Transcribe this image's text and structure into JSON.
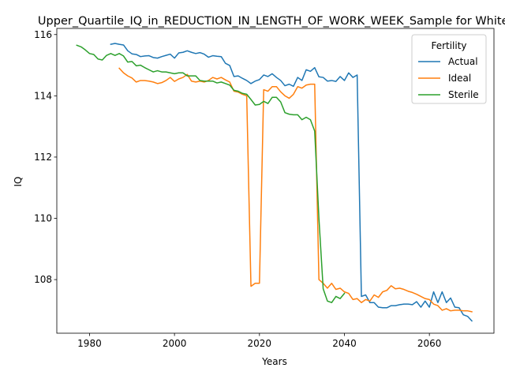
{
  "chart_data": {
    "type": "line",
    "title": "Upper_Quartile_IQ_in_REDUCTION_IN_LENGTH_OF_WORK_WEEK_Sample for Whites",
    "xlabel": "Years",
    "ylabel": "IQ",
    "xlim": [
      1972.3,
      2075.2
    ],
    "ylim": [
      106.25,
      116.2
    ],
    "xticks": [
      1980,
      2000,
      2020,
      2040,
      2060
    ],
    "yticks": [
      108,
      110,
      112,
      114,
      116
    ],
    "grid": false,
    "legend": {
      "title": "Fertility",
      "placement": "top-right"
    },
    "series": [
      {
        "name": "Actual",
        "color": "#1f77b4",
        "x": [
          1985,
          1986,
          1987,
          1988,
          1989,
          1990,
          1991,
          1992,
          1993,
          1994,
          1995,
          1996,
          1997,
          1998,
          1999,
          2000,
          2001,
          2002,
          2003,
          2004,
          2005,
          2006,
          2007,
          2008,
          2009,
          2010,
          2011,
          2012,
          2013,
          2014,
          2015,
          2016,
          2017,
          2018,
          2019,
          2020,
          2021,
          2022,
          2023,
          2024,
          2025,
          2026,
          2027,
          2028,
          2029,
          2030,
          2031,
          2032,
          2033,
          2034,
          2035,
          2036,
          2037,
          2038,
          2039,
          2040,
          2041,
          2042,
          2043,
          2044,
          2045,
          2046,
          2047,
          2048,
          2049,
          2050,
          2051,
          2052,
          2053,
          2054,
          2055,
          2056,
          2057,
          2058,
          2059,
          2060,
          2061,
          2062,
          2063,
          2064,
          2065,
          2066,
          2067,
          2068,
          2069,
          2070
        ],
        "values": [
          115.68,
          115.71,
          115.68,
          115.66,
          115.47,
          115.37,
          115.35,
          115.28,
          115.3,
          115.31,
          115.25,
          115.23,
          115.28,
          115.32,
          115.36,
          115.23,
          115.4,
          115.42,
          115.47,
          115.42,
          115.38,
          115.41,
          115.36,
          115.26,
          115.31,
          115.29,
          115.28,
          115.06,
          114.99,
          114.63,
          114.65,
          114.57,
          114.5,
          114.4,
          114.48,
          114.53,
          114.68,
          114.63,
          114.72,
          114.6,
          114.5,
          114.33,
          114.38,
          114.31,
          114.6,
          114.5,
          114.85,
          114.8,
          114.92,
          114.62,
          114.6,
          114.48,
          114.5,
          114.47,
          114.63,
          114.5,
          114.75,
          114.6,
          114.68,
          107.45,
          107.5,
          107.25,
          107.25,
          107.1,
          107.08,
          107.08,
          107.15,
          107.15,
          107.18,
          107.2,
          107.2,
          107.18,
          107.28,
          107.1,
          107.3,
          107.1,
          107.6,
          107.25,
          107.6,
          107.25,
          107.4,
          107.1,
          107.08,
          106.85,
          106.8,
          106.65
        ]
      },
      {
        "name": "Ideal",
        "color": "#ff7f0e",
        "x": [
          1987,
          1988,
          1989,
          1990,
          1991,
          1992,
          1993,
          1994,
          1995,
          1996,
          1997,
          1998,
          1999,
          2000,
          2001,
          2002,
          2003,
          2004,
          2005,
          2006,
          2007,
          2008,
          2009,
          2010,
          2011,
          2012,
          2013,
          2014,
          2015,
          2016,
          2017,
          2018,
          2019,
          2020,
          2021,
          2022,
          2023,
          2024,
          2025,
          2026,
          2027,
          2028,
          2029,
          2030,
          2031,
          2032,
          2033,
          2034,
          2035,
          2036,
          2037,
          2038,
          2039,
          2040,
          2041,
          2042,
          2043,
          2044,
          2045,
          2046,
          2047,
          2048,
          2049,
          2050,
          2051,
          2052,
          2053,
          2054,
          2055,
          2056,
          2057,
          2058,
          2059,
          2060,
          2061,
          2062,
          2063,
          2064,
          2065,
          2066,
          2067,
          2068,
          2069,
          2070
        ],
        "values": [
          114.9,
          114.75,
          114.65,
          114.58,
          114.45,
          114.5,
          114.5,
          114.48,
          114.45,
          114.4,
          114.43,
          114.5,
          114.6,
          114.47,
          114.55,
          114.6,
          114.7,
          114.48,
          114.45,
          114.48,
          114.45,
          114.5,
          114.6,
          114.55,
          114.6,
          114.52,
          114.45,
          114.15,
          114.12,
          114.05,
          114.0,
          107.78,
          107.88,
          107.88,
          114.2,
          114.15,
          114.3,
          114.3,
          114.13,
          114.0,
          113.92,
          114.05,
          114.3,
          114.25,
          114.35,
          114.38,
          114.38,
          108.0,
          107.88,
          107.72,
          107.88,
          107.68,
          107.72,
          107.6,
          107.55,
          107.35,
          107.38,
          107.25,
          107.35,
          107.3,
          107.5,
          107.42,
          107.6,
          107.65,
          107.8,
          107.7,
          107.72,
          107.68,
          107.62,
          107.58,
          107.52,
          107.45,
          107.38,
          107.35,
          107.2,
          107.15,
          107.0,
          107.05,
          106.98,
          107.0,
          107.0,
          106.98,
          106.98,
          106.95
        ]
      },
      {
        "name": "Sterile",
        "color": "#2ca02c",
        "x": [
          1977,
          1978,
          1979,
          1980,
          1981,
          1982,
          1983,
          1984,
          1985,
          1986,
          1987,
          1988,
          1989,
          1990,
          1991,
          1992,
          1993,
          1994,
          1995,
          1996,
          1997,
          1998,
          1999,
          2000,
          2001,
          2002,
          2003,
          2004,
          2005,
          2006,
          2007,
          2008,
          2009,
          2010,
          2011,
          2012,
          2013,
          2014,
          2015,
          2016,
          2017,
          2018,
          2019,
          2020,
          2021,
          2022,
          2023,
          2024,
          2025,
          2026,
          2027,
          2028,
          2029,
          2030,
          2031,
          2032,
          2033,
          2034,
          2035,
          2036,
          2037,
          2038,
          2039,
          2040
        ],
        "values": [
          115.65,
          115.6,
          115.5,
          115.38,
          115.35,
          115.2,
          115.17,
          115.32,
          115.38,
          115.32,
          115.38,
          115.3,
          115.1,
          115.12,
          114.98,
          115.0,
          114.92,
          114.85,
          114.78,
          114.82,
          114.78,
          114.78,
          114.75,
          114.72,
          114.75,
          114.75,
          114.65,
          114.65,
          114.65,
          114.5,
          114.48,
          114.48,
          114.48,
          114.42,
          114.45,
          114.4,
          114.35,
          114.18,
          114.15,
          114.08,
          114.05,
          113.88,
          113.7,
          113.72,
          113.82,
          113.75,
          113.95,
          113.95,
          113.8,
          113.45,
          113.4,
          113.38,
          113.38,
          113.22,
          113.3,
          113.22,
          112.85,
          110.0,
          107.7,
          107.3,
          107.25,
          107.45,
          107.38,
          107.55
        ]
      }
    ]
  }
}
